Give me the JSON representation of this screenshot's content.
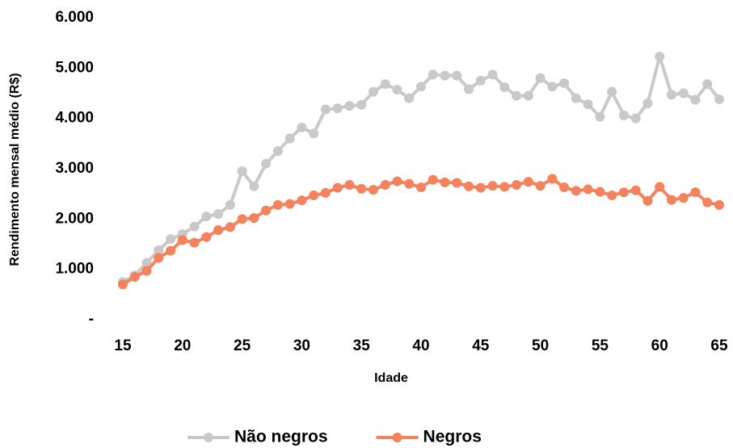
{
  "chart_data": {
    "type": "line",
    "x_label": "Idade",
    "y_label": "Rendimento mensal médio (R$)",
    "x": [
      15,
      16,
      17,
      18,
      19,
      20,
      21,
      22,
      23,
      24,
      25,
      26,
      27,
      28,
      29,
      30,
      31,
      32,
      33,
      34,
      35,
      36,
      37,
      38,
      39,
      40,
      41,
      42,
      43,
      44,
      45,
      46,
      47,
      48,
      49,
      50,
      51,
      52,
      53,
      54,
      55,
      56,
      57,
      58,
      59,
      60,
      61,
      62,
      63,
      64,
      65
    ],
    "series": [
      {
        "name": "Não negros",
        "color": "#c9c9c9",
        "values": [
          750,
          880,
          1130,
          1380,
          1600,
          1700,
          1850,
          2050,
          2100,
          2280,
          2950,
          2650,
          3100,
          3350,
          3600,
          3820,
          3700,
          4180,
          4200,
          4250,
          4270,
          4530,
          4680,
          4570,
          4400,
          4630,
          4870,
          4850,
          4850,
          4580,
          4750,
          4870,
          4620,
          4450,
          4450,
          4800,
          4630,
          4700,
          4400,
          4280,
          4030,
          4530,
          4060,
          4000,
          4300,
          5230,
          4470,
          4500,
          4370,
          4680,
          4380
        ]
      },
      {
        "name": "Negros",
        "color": "#f4825c",
        "values": [
          700,
          850,
          970,
          1230,
          1370,
          1580,
          1530,
          1640,
          1780,
          1840,
          2000,
          2020,
          2170,
          2280,
          2300,
          2370,
          2470,
          2520,
          2620,
          2680,
          2600,
          2580,
          2680,
          2750,
          2700,
          2630,
          2780,
          2730,
          2720,
          2650,
          2620,
          2660,
          2640,
          2680,
          2740,
          2660,
          2800,
          2630,
          2560,
          2590,
          2540,
          2470,
          2530,
          2570,
          2360,
          2640,
          2380,
          2420,
          2530,
          2330,
          2280
        ]
      }
    ],
    "xlim": [
      15,
      65
    ],
    "xticks": [
      15,
      20,
      25,
      30,
      35,
      40,
      45,
      50,
      55,
      60,
      65
    ],
    "ylim": [
      0,
      6000
    ],
    "yticks": [
      {
        "value": 0,
        "label": "-"
      },
      {
        "value": 1000,
        "label": "1.000"
      },
      {
        "value": 2000,
        "label": "2.000"
      },
      {
        "value": 3000,
        "label": "3.000"
      },
      {
        "value": 4000,
        "label": "4.000"
      },
      {
        "value": 5000,
        "label": "5.000"
      },
      {
        "value": 6000,
        "label": "6.000"
      }
    ],
    "grid": false,
    "legend": "bottom"
  }
}
